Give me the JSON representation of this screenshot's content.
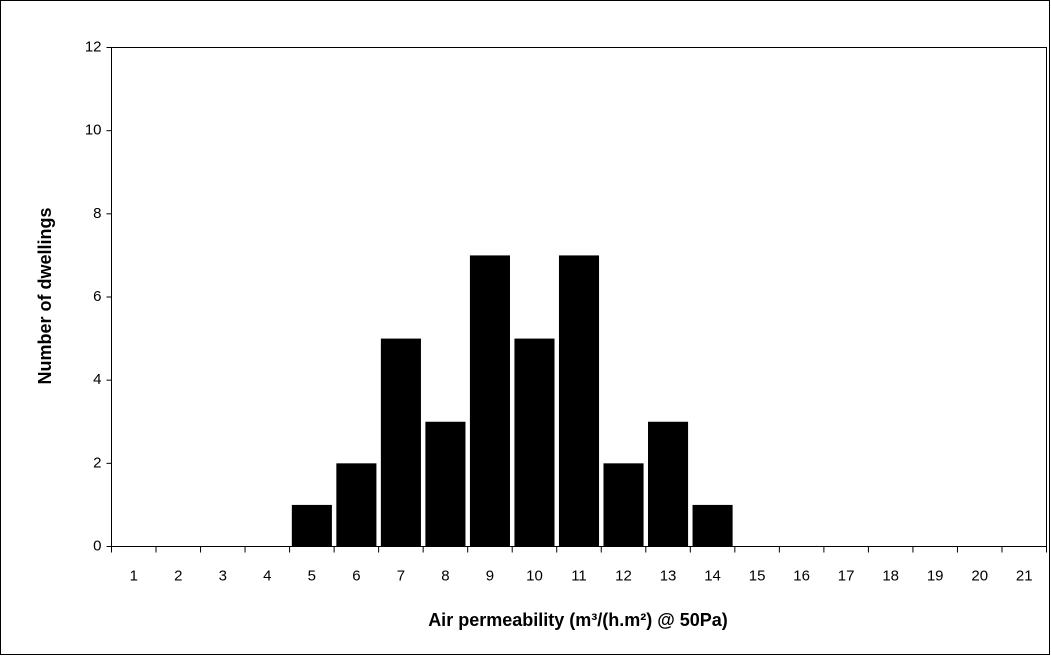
{
  "chart_data": {
    "type": "bar",
    "x_label": "Air permeability (m³/(h.m²) @ 50Pa)",
    "y_label": "Number of dwellings",
    "categories": [
      "1",
      "2",
      "3",
      "4",
      "5",
      "6",
      "7",
      "8",
      "9",
      "10",
      "11",
      "12",
      "13",
      "14",
      "15",
      "16",
      "17",
      "18",
      "19",
      "20",
      "21"
    ],
    "values": [
      0,
      0,
      0,
      0,
      1,
      2,
      5,
      3,
      7,
      5,
      7,
      2,
      3,
      1,
      0,
      0,
      0,
      0,
      0,
      0,
      0
    ],
    "color": "#000000",
    "ylim": [
      0,
      12
    ],
    "yticks": [
      0,
      2,
      4,
      6,
      8,
      10,
      12
    ],
    "grid": false
  }
}
